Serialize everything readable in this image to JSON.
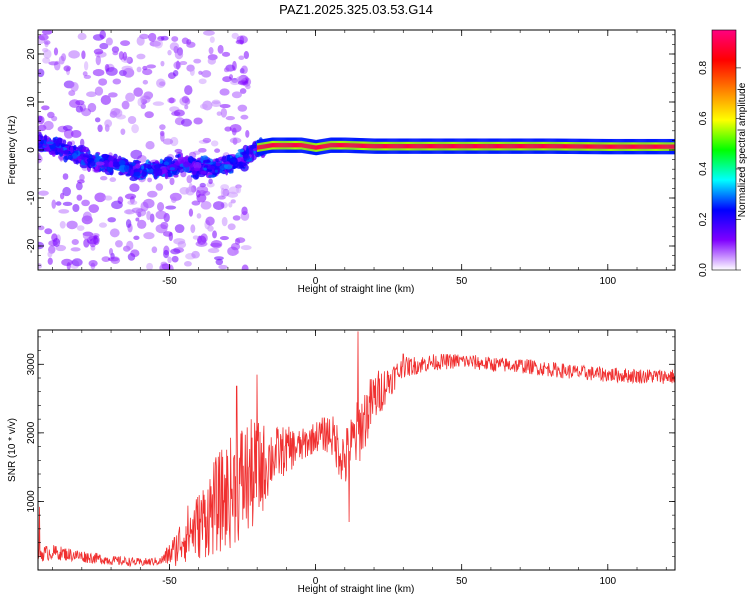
{
  "title": "PAZ1.2025.325.03.53.G14",
  "chart_data": [
    {
      "type": "heatmap",
      "xlabel": "Height of straight line (km)",
      "ylabel": "Frequency (Hz)",
      "xlim": [
        -95,
        123
      ],
      "ylim": [
        -25,
        25
      ],
      "xticks": [
        -50,
        0,
        50,
        100
      ],
      "yticks": [
        -20,
        -10,
        0,
        10,
        20
      ],
      "colorbar": {
        "label": "Normalized spectral amplitude",
        "range": [
          0,
          0.95
        ],
        "ticks": [
          0.0,
          0.2,
          0.4,
          0.6,
          0.8
        ],
        "tick_labels": [
          "0.0",
          "0.2",
          "0.4",
          "0.6",
          "0.8"
        ],
        "colors": [
          "#ffffff",
          "#7f00ff",
          "#0000ff",
          "#00ffff",
          "#00ff00",
          "#ffff00",
          "#ff8000",
          "#ff0000",
          "#ff0080"
        ]
      },
      "ridge": [
        {
          "x": -95,
          "f": 2.0
        },
        {
          "x": -90,
          "f": 0.5
        },
        {
          "x": -85,
          "f": 0.0
        },
        {
          "x": -80,
          "f": -1.5
        },
        {
          "x": -75,
          "f": -2.5
        },
        {
          "x": -70,
          "f": -3.0
        },
        {
          "x": -65,
          "f": -3.5
        },
        {
          "x": -60,
          "f": -4.5
        },
        {
          "x": -55,
          "f": -4.0
        },
        {
          "x": -50,
          "f": -3.5
        },
        {
          "x": -45,
          "f": -3.0
        },
        {
          "x": -40,
          "f": -4.0
        },
        {
          "x": -35,
          "f": -3.5
        },
        {
          "x": -30,
          "f": -3.0
        },
        {
          "x": -25,
          "f": -2.0
        },
        {
          "x": -20,
          "f": 0.5
        },
        {
          "x": -15,
          "f": 1.0
        },
        {
          "x": -10,
          "f": 1.0
        },
        {
          "x": -5,
          "f": 1.0
        },
        {
          "x": 0,
          "f": 0.5
        },
        {
          "x": 5,
          "f": 1.0
        },
        {
          "x": 10,
          "f": 1.0
        },
        {
          "x": 20,
          "f": 0.8
        },
        {
          "x": 40,
          "f": 0.8
        },
        {
          "x": 60,
          "f": 0.8
        },
        {
          "x": 80,
          "f": 0.8
        },
        {
          "x": 100,
          "f": 0.7
        },
        {
          "x": 123,
          "f": 0.7
        }
      ]
    },
    {
      "type": "line",
      "xlabel": "Height of straight line (km)",
      "ylabel": "SNR (10 * v/v)",
      "xlim": [
        -95,
        123
      ],
      "ylim": [
        0,
        3500
      ],
      "xticks": [
        -50,
        0,
        50,
        100
      ],
      "yticks": [
        1000,
        2000,
        3000
      ],
      "color": "#f03030",
      "envelope": [
        {
          "x": -95,
          "mean": 230,
          "amp": 120
        },
        {
          "x": -90,
          "mean": 260,
          "amp": 110
        },
        {
          "x": -80,
          "mean": 200,
          "amp": 90
        },
        {
          "x": -70,
          "mean": 140,
          "amp": 70
        },
        {
          "x": -60,
          "mean": 110,
          "amp": 60
        },
        {
          "x": -53,
          "mean": 130,
          "amp": 60
        },
        {
          "x": -48,
          "mean": 300,
          "amp": 250
        },
        {
          "x": -45,
          "mean": 500,
          "amp": 400
        },
        {
          "x": -40,
          "mean": 650,
          "amp": 500
        },
        {
          "x": -35,
          "mean": 900,
          "amp": 700
        },
        {
          "x": -30,
          "mean": 1100,
          "amp": 800
        },
        {
          "x": -25,
          "mean": 1300,
          "amp": 900
        },
        {
          "x": -20,
          "mean": 1400,
          "amp": 800
        },
        {
          "x": -15,
          "mean": 1650,
          "amp": 450
        },
        {
          "x": -10,
          "mean": 1750,
          "amp": 350
        },
        {
          "x": -5,
          "mean": 1800,
          "amp": 250
        },
        {
          "x": 0,
          "mean": 1950,
          "amp": 220
        },
        {
          "x": 5,
          "mean": 2000,
          "amp": 300
        },
        {
          "x": 10,
          "mean": 1600,
          "amp": 450
        },
        {
          "x": 15,
          "mean": 2050,
          "amp": 500
        },
        {
          "x": 20,
          "mean": 2500,
          "amp": 400
        },
        {
          "x": 25,
          "mean": 2750,
          "amp": 250
        },
        {
          "x": 30,
          "mean": 2950,
          "amp": 150
        },
        {
          "x": 40,
          "mean": 3030,
          "amp": 120
        },
        {
          "x": 50,
          "mean": 3050,
          "amp": 110
        },
        {
          "x": 60,
          "mean": 3000,
          "amp": 110
        },
        {
          "x": 70,
          "mean": 2980,
          "amp": 110
        },
        {
          "x": 80,
          "mean": 2930,
          "amp": 110
        },
        {
          "x": 90,
          "mean": 2880,
          "amp": 110
        },
        {
          "x": 100,
          "mean": 2850,
          "amp": 110
        },
        {
          "x": 110,
          "mean": 2830,
          "amp": 110
        },
        {
          "x": 123,
          "mean": 2820,
          "amp": 110
        }
      ],
      "spikes": [
        {
          "x": -94.5,
          "value": 920
        },
        {
          "x": -27,
          "value": 2680
        },
        {
          "x": -20,
          "value": 2850
        },
        {
          "x": 11.5,
          "value": 700
        },
        {
          "x": 14.5,
          "value": 3480
        },
        {
          "x": 30,
          "value": 3150
        }
      ]
    }
  ]
}
